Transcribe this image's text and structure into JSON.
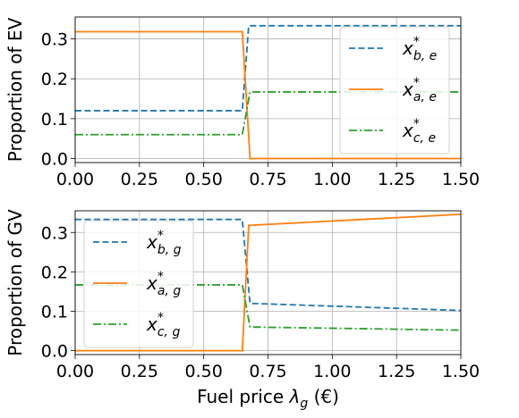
{
  "chart_data": [
    {
      "type": "line",
      "title": "",
      "xlabel": "",
      "ylabel": "Proportion of EV",
      "xlim": [
        0,
        1.5
      ],
      "ylim": [
        -0.01,
        0.355
      ],
      "xticks": [
        "0.00",
        "0.25",
        "0.50",
        "0.75",
        "1.00",
        "1.25",
        "1.50"
      ],
      "yticks": [
        "0.0",
        "0.1",
        "0.2",
        "0.3"
      ],
      "grid": true,
      "legend_position": "right",
      "series": [
        {
          "name": "x*_{b,e}",
          "label_base": "x",
          "label_sub": "b, e",
          "label_sup": "*",
          "style": "dashed",
          "color": "#1f77b4",
          "x": [
            0,
            0.65,
            0.675,
            1.5
          ],
          "y": [
            0.12,
            0.12,
            0.333,
            0.333
          ]
        },
        {
          "name": "x*_{a,e}",
          "label_base": "x",
          "label_sub": "a, e",
          "label_sup": "*",
          "style": "solid",
          "color": "#ff7f0e",
          "x": [
            0,
            0.65,
            0.68,
            1.5
          ],
          "y": [
            0.318,
            0.318,
            0.0,
            0.0
          ]
        },
        {
          "name": "x*_{c,e}",
          "label_base": "x",
          "label_sub": "c, e",
          "label_sup": "*",
          "style": "dashdot",
          "color": "#2ca02c",
          "x": [
            0,
            0.65,
            0.68,
            1.5
          ],
          "y": [
            0.06,
            0.06,
            0.167,
            0.167
          ]
        }
      ]
    },
    {
      "type": "line",
      "title": "",
      "xlabel": "Fuel price λg (€)",
      "xlabel_main": "Fuel price ",
      "xlabel_symbol": "λ",
      "xlabel_sub": "g",
      "xlabel_unit": " (€)",
      "ylabel": "Proportion of GV",
      "xlim": [
        0,
        1.5
      ],
      "ylim": [
        -0.01,
        0.355
      ],
      "xticks": [
        "0.00",
        "0.25",
        "0.50",
        "0.75",
        "1.00",
        "1.25",
        "1.50"
      ],
      "yticks": [
        "0.0",
        "0.1",
        "0.2",
        "0.3"
      ],
      "grid": true,
      "legend_position": "left",
      "series": [
        {
          "name": "x*_{b,g}",
          "label_base": "x",
          "label_sub": "b, g",
          "label_sup": "*",
          "style": "dashed",
          "color": "#1f77b4",
          "x": [
            0,
            0.65,
            0.68,
            1.5
          ],
          "y": [
            0.333,
            0.333,
            0.12,
            0.102
          ]
        },
        {
          "name": "x*_{a,g}",
          "label_base": "x",
          "label_sub": "a, g",
          "label_sup": "*",
          "style": "solid",
          "color": "#ff7f0e",
          "x": [
            0,
            0.65,
            0.675,
            1.5
          ],
          "y": [
            0.0,
            0.0,
            0.318,
            0.346
          ]
        },
        {
          "name": "x*_{c,g}",
          "label_base": "x",
          "label_sub": "c, g",
          "label_sup": "*",
          "style": "dashdot",
          "color": "#2ca02c",
          "x": [
            0,
            0.65,
            0.68,
            1.5
          ],
          "y": [
            0.167,
            0.167,
            0.06,
            0.052
          ]
        }
      ]
    }
  ]
}
